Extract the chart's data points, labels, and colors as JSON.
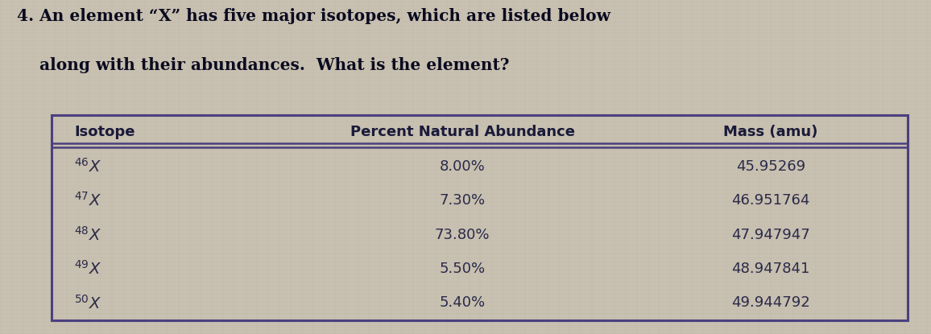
{
  "title_number": "4.",
  "title_text": " An element “X” has five major isotopes, which are listed below",
  "title_line2": "    along with their abundances.  What is the element?",
  "col_headers": [
    "Isotope",
    "Percent Natural Abundance",
    "Mass (amu)"
  ],
  "isotopes_nums": [
    "46",
    "47",
    "48",
    "49",
    "50"
  ],
  "abundances": [
    "8.00%",
    "7.30%",
    "73.80%",
    "5.50%",
    "5.40%"
  ],
  "masses": [
    "45.95269",
    "46.951764",
    "47.947947",
    "48.947841",
    "49.944792"
  ],
  "bg_color": "#c8c0b0",
  "border_color": "#4a4080",
  "header_text_color": "#1a1a3a",
  "data_text_color": "#2a2a4a",
  "title_color": "#0a0a20"
}
